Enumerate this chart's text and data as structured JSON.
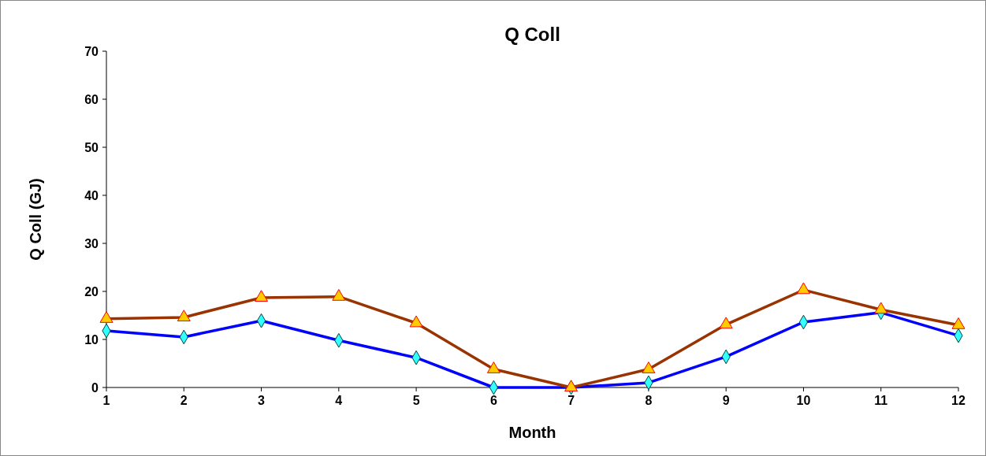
{
  "chart_data": {
    "type": "line",
    "title": "Q Coll",
    "xlabel": "Month",
    "ylabel": "Q Coll (GJ)",
    "x": [
      1,
      2,
      3,
      4,
      5,
      6,
      7,
      8,
      9,
      10,
      11,
      12
    ],
    "xlim": [
      1,
      12
    ],
    "xticks": [
      1,
      2,
      3,
      4,
      5,
      6,
      7,
      8,
      9,
      10,
      11,
      12
    ],
    "ylim": [
      0,
      70
    ],
    "yticks": [
      0,
      10,
      20,
      30,
      40,
      50,
      60,
      70
    ],
    "grid": false,
    "series": [
      {
        "color": "#0000ff",
        "marker": "diamond",
        "values": [
          11.8,
          10.5,
          13.9,
          9.8,
          6.2,
          0,
          0,
          1.0,
          6.4,
          13.6,
          15.6,
          10.8
        ]
      },
      {
        "color": "#993300",
        "marker": "triangle",
        "values": [
          14.3,
          14.6,
          18.7,
          18.9,
          13.4,
          3.8,
          0,
          3.8,
          13.1,
          20.3,
          16.2,
          13.0
        ]
      }
    ]
  }
}
